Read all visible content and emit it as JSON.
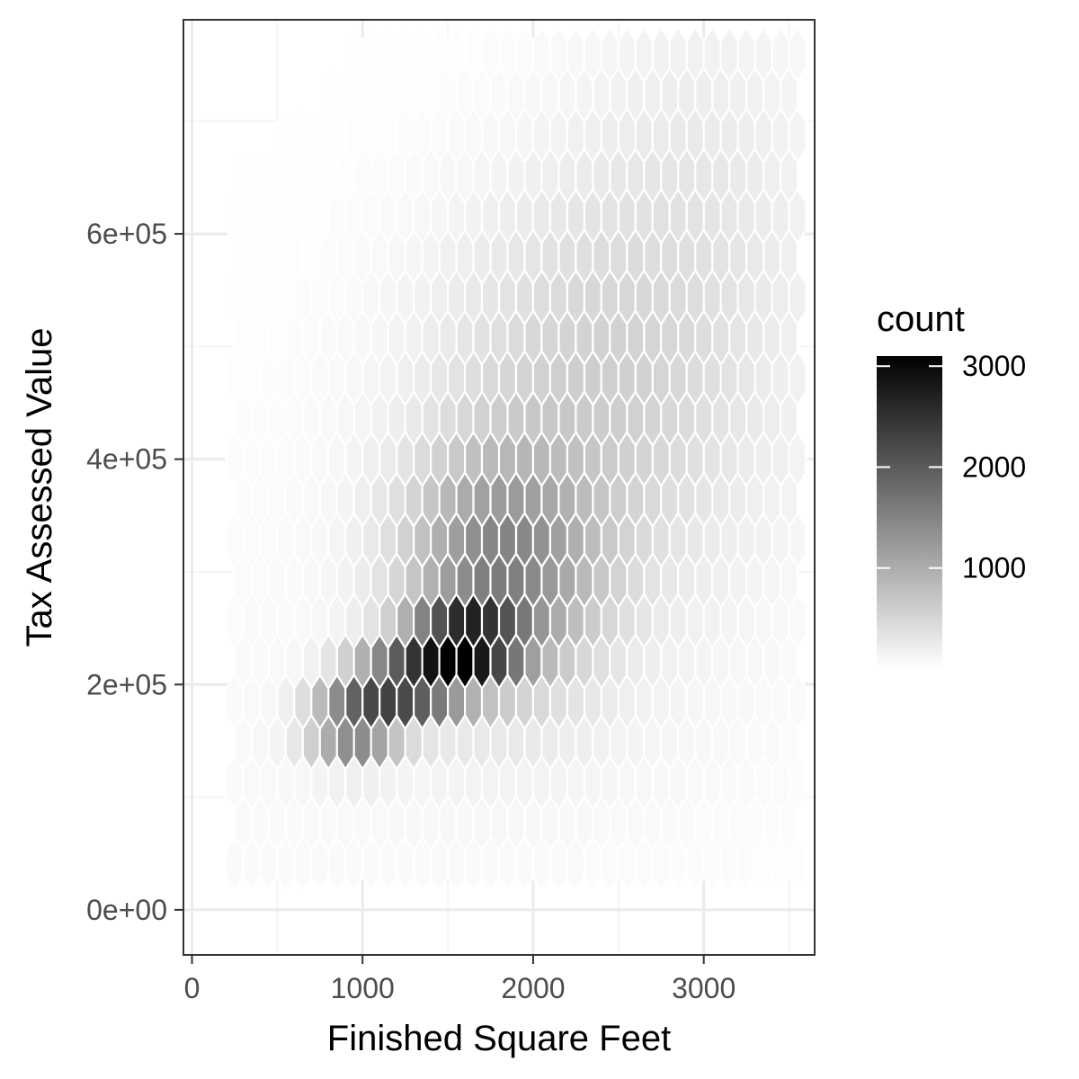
{
  "chart_data": {
    "type": "hexbin",
    "title": "",
    "xlabel": "Finished Square Feet",
    "ylabel": "Tax Assessed Value",
    "xlim": [
      -50,
      3650
    ],
    "ylim": [
      -40000,
      790000
    ],
    "x_ticks": [
      0,
      1000,
      2000,
      3000
    ],
    "x_tick_labels": [
      "0",
      "1000",
      "2000",
      "3000"
    ],
    "y_ticks": [
      0,
      200000,
      400000,
      600000
    ],
    "y_tick_labels": [
      "0e+00",
      "2e+05",
      "4e+05",
      "6e+05"
    ],
    "grid": true,
    "legend": {
      "title": "count",
      "placement": "right",
      "breaks": [
        1000,
        2000,
        3000
      ],
      "break_labels": [
        "1000",
        "2000",
        "3000"
      ],
      "range": [
        0,
        3100
      ],
      "low_color": "#ffffff",
      "high_color": "#000000"
    },
    "hex_bin_width_x": 100,
    "density_model": {
      "description": "2D density of counts: ridge along y = 98500 + 85 * x, peak near (1650, 238000)",
      "peak_count": 3100,
      "components": [
        {
          "cx": 1600,
          "cy": 235000,
          "sx": 220,
          "sy": 22000,
          "w": 2500
        },
        {
          "cx": 1250,
          "cy": 200000,
          "sx": 220,
          "sy": 20000,
          "w": 2200
        },
        {
          "cx": 950,
          "cy": 165000,
          "sx": 180,
          "sy": 22000,
          "w": 1700
        },
        {
          "cx": 1800,
          "cy": 300000,
          "sx": 380,
          "sy": 70000,
          "w": 1300
        },
        {
          "cx": 2300,
          "cy": 450000,
          "sx": 650,
          "sy": 130000,
          "w": 500
        },
        {
          "cx": 3000,
          "cy": 650000,
          "sx": 500,
          "sy": 140000,
          "w": 180
        },
        {
          "cx": 1900,
          "cy": 150000,
          "sx": 900,
          "sy": 70000,
          "w": 60
        }
      ]
    }
  },
  "colors": {
    "panel_border": "#333333",
    "grid_major": "#ebebeb",
    "grid_minor": "#f5f5f5",
    "tick_color": "#333333",
    "hex_border": "#ffffff"
  }
}
